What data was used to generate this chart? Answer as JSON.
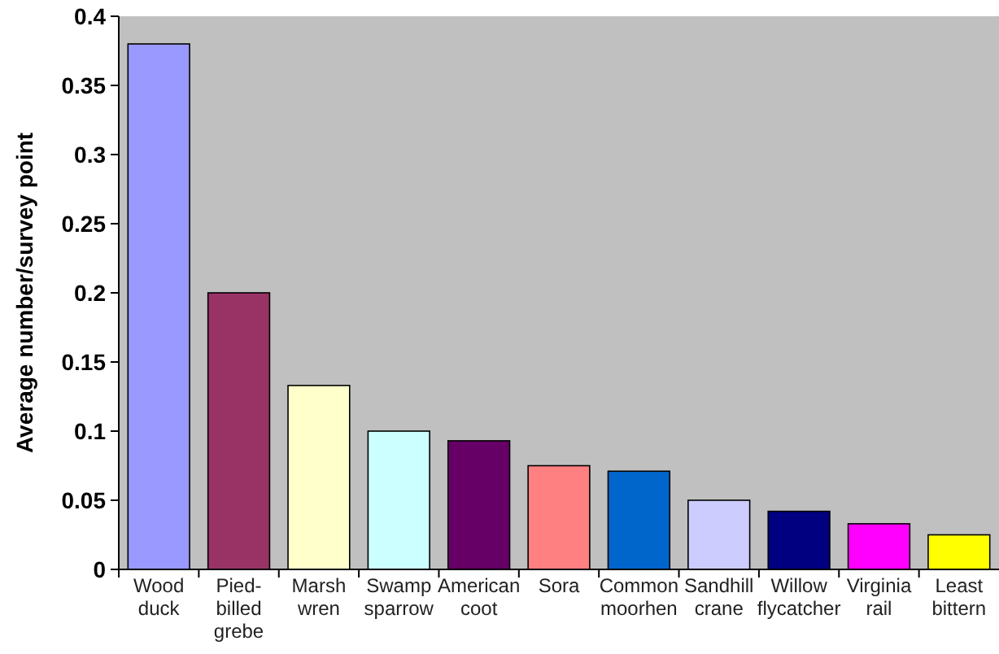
{
  "chart_data": {
    "type": "bar",
    "ylabel": "Average number/survey point",
    "categories": [
      "Wood duck",
      "Pied-billed grebe",
      "Marsh wren",
      "Swamp sparrow",
      "American coot",
      "Sora",
      "Common moorhen",
      "Sandhill crane",
      "Willow flycatcher",
      "Virginia rail",
      "Least bittern"
    ],
    "values": [
      0.38,
      0.2,
      0.133,
      0.1,
      0.093,
      0.075,
      0.071,
      0.05,
      0.042,
      0.033,
      0.025
    ],
    "colors": [
      "#9999ff",
      "#993366",
      "#ffffcc",
      "#ccffff",
      "#660066",
      "#ff8080",
      "#0066cc",
      "#ccccff",
      "#000080",
      "#ff00ff",
      "#ffff00"
    ],
    "ylim": [
      0,
      0.4
    ],
    "yticks": [
      0,
      0.05,
      0.1,
      0.15,
      0.2,
      0.25,
      0.3,
      0.35,
      0.4
    ],
    "grid": false
  }
}
